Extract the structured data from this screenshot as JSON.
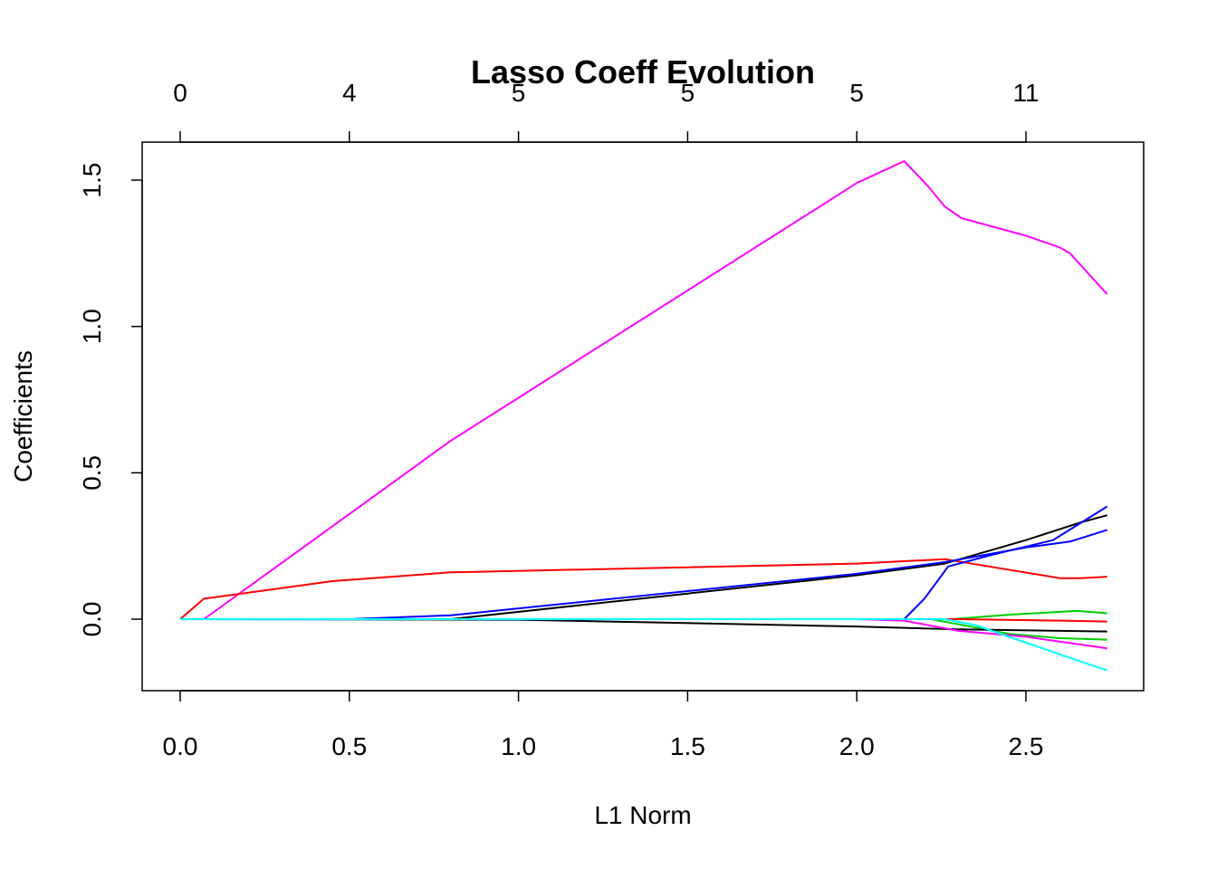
{
  "chart_data": {
    "type": "line",
    "title": "Lasso Coeff Evolution",
    "xlabel": "L1 Norm",
    "ylabel": "Coefficients",
    "xlim": [
      0.0,
      2.74
    ],
    "ylim": [
      -0.245,
      1.635
    ],
    "x_ticks": [
      {
        "value": 0.0,
        "label": "0.0"
      },
      {
        "value": 0.5,
        "label": "0.5"
      },
      {
        "value": 1.0,
        "label": "1.0"
      },
      {
        "value": 1.5,
        "label": "1.5"
      },
      {
        "value": 2.0,
        "label": "2.0"
      },
      {
        "value": 2.5,
        "label": "2.5"
      }
    ],
    "y_ticks": [
      {
        "value": 0.0,
        "label": "0.0"
      },
      {
        "value": 0.5,
        "label": "0.5"
      },
      {
        "value": 1.0,
        "label": "1.0"
      },
      {
        "value": 1.5,
        "label": "1.5"
      }
    ],
    "top_axis_ticks": [
      {
        "value": 0.0,
        "label": "0"
      },
      {
        "value": 0.5,
        "label": "4"
      },
      {
        "value": 1.0,
        "label": "5"
      },
      {
        "value": 1.5,
        "label": "5"
      },
      {
        "value": 2.0,
        "label": "5"
      },
      {
        "value": 2.5,
        "label": "11"
      }
    ],
    "grid": false,
    "legend": "none",
    "series": [
      {
        "color": "#FF00FF",
        "points": [
          [
            0.0,
            0.0
          ],
          [
            0.07,
            0.0
          ],
          [
            0.8,
            0.61
          ],
          [
            2.0,
            1.49
          ],
          [
            2.14,
            1.565
          ],
          [
            2.21,
            1.48
          ],
          [
            2.26,
            1.41
          ],
          [
            2.31,
            1.37
          ],
          [
            2.5,
            1.31
          ],
          [
            2.6,
            1.27
          ],
          [
            2.63,
            1.25
          ],
          [
            2.74,
            1.11
          ]
        ]
      },
      {
        "color": "#FF0000",
        "points": [
          [
            0.0,
            0.0
          ],
          [
            0.07,
            0.07
          ],
          [
            0.45,
            0.13
          ],
          [
            0.8,
            0.16
          ],
          [
            2.0,
            0.19
          ],
          [
            2.26,
            0.205
          ],
          [
            2.6,
            0.14
          ],
          [
            2.66,
            0.14
          ],
          [
            2.74,
            0.145
          ]
        ]
      },
      {
        "color": "#000000",
        "points": [
          [
            0.0,
            0.0
          ],
          [
            0.8,
            0.0
          ],
          [
            2.0,
            0.15
          ],
          [
            2.26,
            0.19
          ],
          [
            2.5,
            0.27
          ],
          [
            2.66,
            0.33
          ],
          [
            2.74,
            0.355
          ]
        ]
      },
      {
        "color": "#0000FF",
        "points": [
          [
            0.0,
            0.0
          ],
          [
            0.5,
            0.0
          ],
          [
            0.8,
            0.013
          ],
          [
            2.0,
            0.155
          ],
          [
            2.26,
            0.195
          ],
          [
            2.5,
            0.245
          ],
          [
            2.63,
            0.265
          ],
          [
            2.74,
            0.305
          ]
        ]
      },
      {
        "color": "#0000FF",
        "points": [
          [
            0.0,
            0.0
          ],
          [
            2.14,
            0.0
          ],
          [
            2.2,
            0.07
          ],
          [
            2.27,
            0.18
          ],
          [
            2.4,
            0.22
          ],
          [
            2.58,
            0.27
          ],
          [
            2.65,
            0.32
          ],
          [
            2.74,
            0.385
          ]
        ]
      },
      {
        "color": "#00CD00",
        "points": [
          [
            0.0,
            0.0
          ],
          [
            2.28,
            0.0
          ],
          [
            2.45,
            0.015
          ],
          [
            2.6,
            0.025
          ],
          [
            2.65,
            0.028
          ],
          [
            2.74,
            0.02
          ]
        ]
      },
      {
        "color": "#00CD00",
        "points": [
          [
            0.0,
            0.0
          ],
          [
            2.22,
            0.0
          ],
          [
            2.45,
            -0.05
          ],
          [
            2.6,
            -0.065
          ],
          [
            2.74,
            -0.07
          ]
        ]
      },
      {
        "color": "#FF0000",
        "points": [
          [
            0.0,
            0.0
          ],
          [
            2.3,
            0.0
          ],
          [
            2.6,
            -0.005
          ],
          [
            2.74,
            -0.008
          ]
        ]
      },
      {
        "color": "#000000",
        "points": [
          [
            0.0,
            0.0
          ],
          [
            1.0,
            -0.002
          ],
          [
            2.0,
            -0.025
          ],
          [
            2.3,
            -0.035
          ],
          [
            2.74,
            -0.042
          ]
        ]
      },
      {
        "color": "#FF00FF",
        "points": [
          [
            0.0,
            0.0
          ],
          [
            2.0,
            0.0
          ],
          [
            2.14,
            -0.005
          ],
          [
            2.3,
            -0.04
          ],
          [
            2.5,
            -0.06
          ],
          [
            2.74,
            -0.1
          ]
        ]
      },
      {
        "color": "#00FFFF",
        "points": [
          [
            0.0,
            0.0
          ],
          [
            2.26,
            0.0
          ],
          [
            2.35,
            -0.02
          ],
          [
            2.5,
            -0.08
          ],
          [
            2.65,
            -0.14
          ],
          [
            2.74,
            -0.175
          ]
        ]
      }
    ]
  }
}
